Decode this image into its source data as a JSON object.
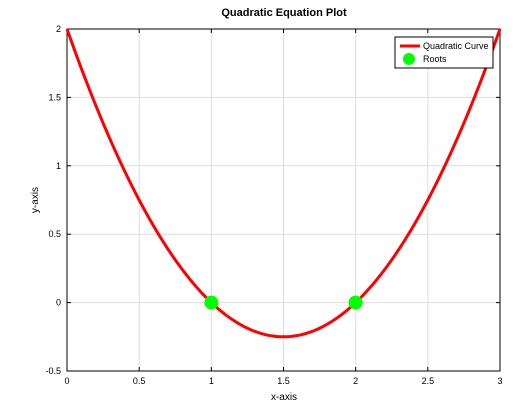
{
  "chart_data": {
    "type": "line",
    "title": "Quadratic Equation Plot",
    "xlabel": "x-axis",
    "ylabel": "y-axis",
    "xlim": [
      0,
      3
    ],
    "ylim": [
      -0.5,
      2
    ],
    "xticks": [
      0,
      0.5,
      1,
      1.5,
      2,
      2.5,
      3
    ],
    "xtick_labels": [
      "0",
      "0.5",
      "1",
      "1.5",
      "2",
      "2.5",
      "3"
    ],
    "yticks": [
      -0.5,
      0,
      0.5,
      1,
      1.5,
      2
    ],
    "ytick_labels": [
      "-0.5",
      "0",
      "0.5",
      "1",
      "1.5",
      "2"
    ],
    "grid": true,
    "legend_position": "top-right",
    "series": [
      {
        "name": "Quadratic Curve",
        "kind": "line",
        "color": "#ff0000",
        "x": [
          0,
          0.25,
          0.5,
          0.75,
          1,
          1.25,
          1.5,
          1.75,
          2,
          2.25,
          2.5,
          2.75,
          3
        ],
        "y": [
          2,
          1.3125,
          0.75,
          0.3125,
          0,
          -0.1875,
          -0.25,
          -0.1875,
          0,
          0.3125,
          0.75,
          1.3125,
          2
        ]
      },
      {
        "name": "Roots",
        "kind": "scatter",
        "color": "#00ff00",
        "x": [
          1,
          2
        ],
        "y": [
          0,
          0
        ]
      }
    ]
  }
}
